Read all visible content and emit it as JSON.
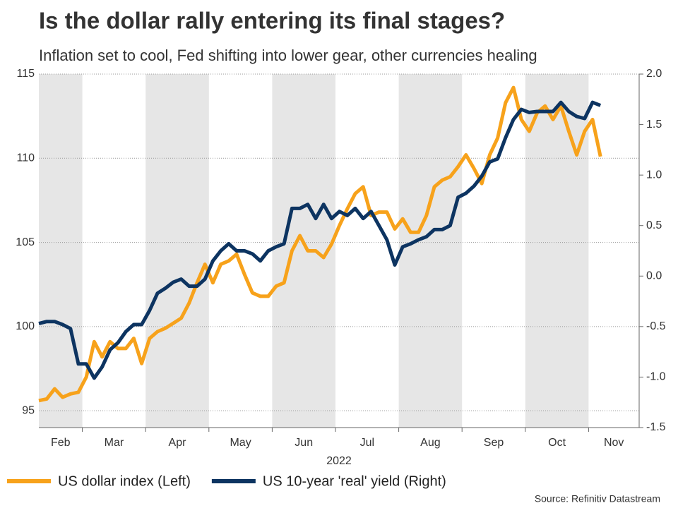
{
  "chart_data": {
    "type": "line",
    "title": "Is the dollar rally entering its final stages?",
    "subtitle": "Inflation set to cool, Fed shifting into lower gear, other currencies healing",
    "x_label": "2022",
    "source": "Source: Refinitiv Datastream",
    "band_color": "#e6e6e6",
    "grid": true,
    "categories": [
      "Feb",
      "Feb",
      "Feb",
      "Feb",
      "Feb",
      "Feb",
      "Mar",
      "Mar",
      "Mar",
      "Mar",
      "Mar",
      "Mar",
      "Mar",
      "Mar",
      "Apr",
      "Apr",
      "Apr",
      "Apr",
      "Apr",
      "Apr",
      "Apr",
      "Apr",
      "May",
      "May",
      "May",
      "May",
      "May",
      "May",
      "May",
      "May",
      "Jun",
      "Jun",
      "Jun",
      "Jun",
      "Jun",
      "Jun",
      "Jun",
      "Jun",
      "Jul",
      "Jul",
      "Jul",
      "Jul",
      "Jul",
      "Jul",
      "Jul",
      "Jul",
      "Aug",
      "Aug",
      "Aug",
      "Aug",
      "Aug",
      "Aug",
      "Aug",
      "Aug",
      "Sep",
      "Sep",
      "Sep",
      "Sep",
      "Sep",
      "Sep",
      "Sep",
      "Sep",
      "Oct",
      "Oct",
      "Oct",
      "Oct",
      "Oct",
      "Oct",
      "Oct",
      "Oct",
      "Nov",
      "Nov"
    ],
    "series": [
      {
        "name": "US dollar index (Left)",
        "color": "#f7a21b",
        "axis": "y",
        "values": [
          95.6,
          95.7,
          96.3,
          95.8,
          96.0,
          96.1,
          97.0,
          99.1,
          98.2,
          99.1,
          98.7,
          98.7,
          99.3,
          97.8,
          99.3,
          99.7,
          99.9,
          100.2,
          100.5,
          101.4,
          102.6,
          103.7,
          102.6,
          103.7,
          103.9,
          104.3,
          103.1,
          102.0,
          101.8,
          101.8,
          102.4,
          102.6,
          104.5,
          105.4,
          104.5,
          104.5,
          104.1,
          104.9,
          106.0,
          107.0,
          107.9,
          108.3,
          106.6,
          106.8,
          106.8,
          105.8,
          106.4,
          105.6,
          105.6,
          106.6,
          108.3,
          108.7,
          108.9,
          109.5,
          110.2,
          109.4,
          108.5,
          110.2,
          111.2,
          113.3,
          114.2,
          112.3,
          111.6,
          112.7,
          113.1,
          112.3,
          113.1,
          111.6,
          110.2,
          111.6,
          112.3,
          110.1
        ]
      },
      {
        "name": "US 10-year 'real' yield (Right)",
        "color": "#0d3461",
        "axis": "y2",
        "values": [
          -0.47,
          -0.45,
          -0.45,
          -0.48,
          -0.52,
          -0.87,
          -0.87,
          -1.01,
          -0.9,
          -0.73,
          -0.66,
          -0.55,
          -0.48,
          -0.48,
          -0.34,
          -0.17,
          -0.12,
          -0.06,
          -0.03,
          -0.1,
          -0.1,
          -0.03,
          0.15,
          0.25,
          0.32,
          0.25,
          0.25,
          0.22,
          0.15,
          0.25,
          0.29,
          0.32,
          0.67,
          0.67,
          0.71,
          0.57,
          0.71,
          0.57,
          0.64,
          0.6,
          0.67,
          0.57,
          0.64,
          0.5,
          0.36,
          0.11,
          0.29,
          0.32,
          0.36,
          0.39,
          0.46,
          0.46,
          0.5,
          0.78,
          0.82,
          0.89,
          0.99,
          1.13,
          1.16,
          1.37,
          1.55,
          1.65,
          1.62,
          1.63,
          1.63,
          1.63,
          1.72,
          1.63,
          1.58,
          1.56,
          1.72,
          1.69
        ]
      }
    ],
    "ylim": [
      94,
      115
    ],
    "yticks": [
      95,
      100,
      105,
      110,
      115
    ],
    "y2lim": [
      -1.5,
      2.0
    ],
    "y2ticks": [
      {
        "value": 2.0,
        "label": "2.0"
      },
      1.5,
      {
        "value": 1.0,
        "label": "1.0"
      },
      0.5,
      {
        "value": 0.0,
        "label": "0.0"
      },
      -0.5,
      {
        "value": -1.0,
        "label": "-1.0"
      },
      -1.5
    ]
  }
}
